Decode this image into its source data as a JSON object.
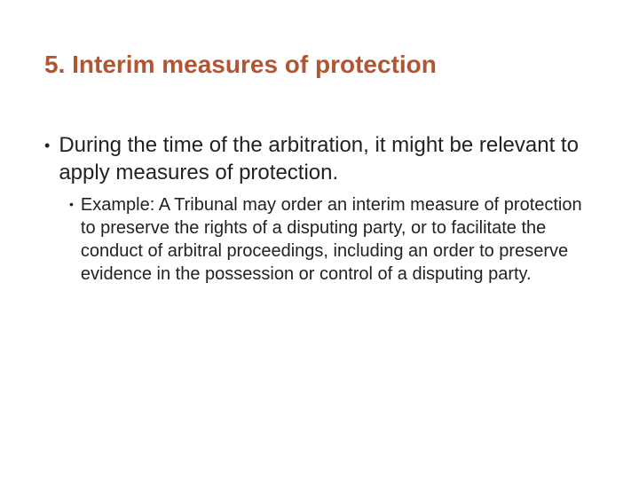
{
  "slide": {
    "title": "5. Interim measures of protection",
    "title_color": "#b15533",
    "title_fontsize": 28,
    "background_color": "#ffffff",
    "body_text_color": "#222222",
    "bullets": [
      {
        "text": "During the time of the arbitration, it might be relevant to apply measures of protection.",
        "fontsize": 24,
        "sub_bullets": [
          {
            "text": "Example: A Tribunal may order an interim measure of protection to preserve the rights of a disputing party, or to facilitate the conduct of arbitral proceedings, including an order to preserve evidence in the possession or control of a disputing party.",
            "fontsize": 20
          }
        ]
      }
    ]
  }
}
